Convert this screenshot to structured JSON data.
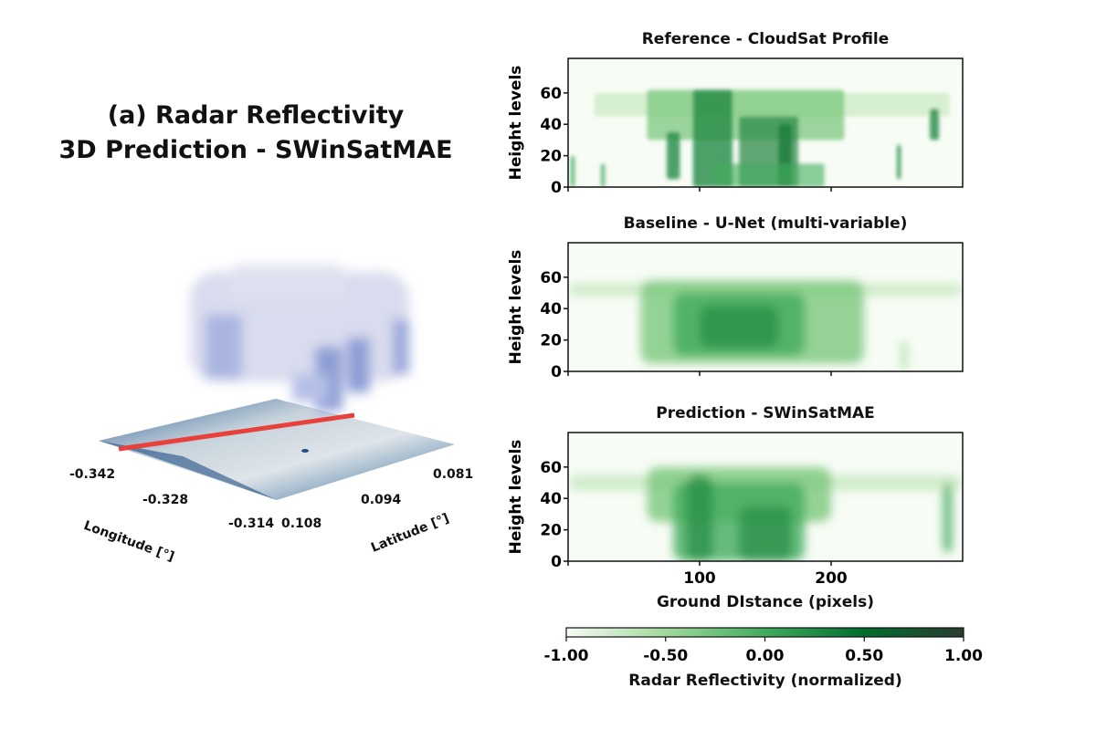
{
  "figure": {
    "title_line1": "(a) Radar Reflectivity",
    "title_line2": "3D Prediction - SWinSatMAE"
  },
  "view3d": {
    "longitude_label": "Longitude [°]",
    "latitude_label": "Latitude [°]",
    "longitude_ticks": [
      "-0.342",
      "-0.328",
      "-0.314"
    ],
    "latitude_ticks": [
      "0.108",
      "0.094",
      "0.081"
    ],
    "colors": {
      "cloud": "#8e9fd6",
      "track": "#e8403a",
      "surface_dark": "#1f4f86",
      "surface_light": "#c9d6df"
    }
  },
  "chart_data": [
    {
      "type": "heatmap",
      "title": "Reference - CloudSat Profile",
      "ylabel": "Height levels",
      "xlabel": "",
      "xlim": [
        0,
        300
      ],
      "ylim": [
        0,
        82
      ],
      "xticks": [
        0,
        100,
        200
      ],
      "yticks": [
        "0",
        "20",
        "40",
        "60"
      ],
      "colormap": "Greens"
    },
    {
      "type": "heatmap",
      "title": "Baseline - U-Net (multi-variable)",
      "ylabel": "Height levels",
      "xlabel": "",
      "xlim": [
        0,
        300
      ],
      "ylim": [
        0,
        82
      ],
      "xticks": [
        0,
        100,
        200
      ],
      "yticks": [
        "0",
        "20",
        "40",
        "60"
      ],
      "colormap": "Greens"
    },
    {
      "type": "heatmap",
      "title": "Prediction - SWinSatMAE",
      "ylabel": "Height levels",
      "xlabel": "Ground DIstance (pixels)",
      "xlim": [
        0,
        300
      ],
      "ylim": [
        0,
        82
      ],
      "xticks": [
        0,
        100,
        200
      ],
      "xticklabels": [
        "",
        "100",
        "200"
      ],
      "yticks": [
        "0",
        "20",
        "40",
        "60"
      ],
      "colormap": "Greens"
    }
  ],
  "colorbar": {
    "label": "Radar Reflectivity (normalized)",
    "range": [
      -1.0,
      1.0
    ],
    "ticks": [
      "-1.00",
      "-0.50",
      "0.00",
      "0.50",
      "1.00"
    ],
    "colors": [
      "#f7fcf5",
      "#a1d99b",
      "#41ab5d",
      "#006d2c",
      "#2a3b2e"
    ]
  }
}
